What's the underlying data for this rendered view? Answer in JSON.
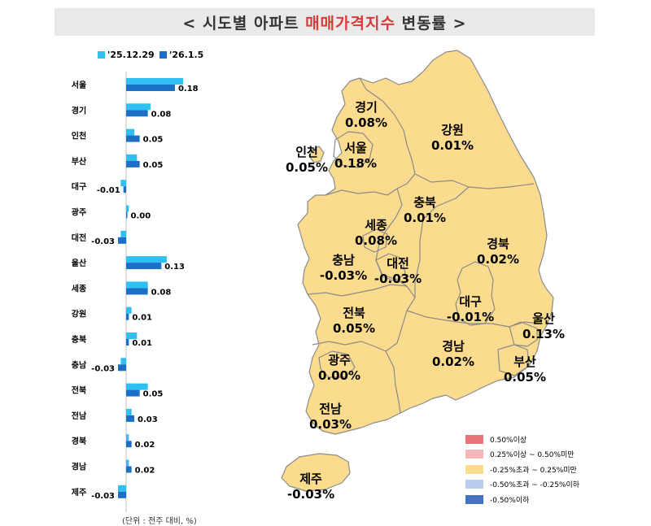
{
  "title": {
    "prefix": "<  시도별 아파트 ",
    "accent": "매매가격지수",
    "suffix": " 변동률  >"
  },
  "unit_note": "(단위 : 전주 대비, %)",
  "colors": {
    "series1": "#2ec0f0",
    "series2": "#1c6fc6",
    "map_fill": "#fbdc8e",
    "map_stroke": "#8a8a8a"
  },
  "chart_data": {
    "type": "bar",
    "orientation": "horizontal",
    "categories": [
      "서울",
      "경기",
      "인천",
      "부산",
      "대구",
      "광주",
      "대전",
      "울산",
      "세종",
      "강원",
      "충북",
      "충남",
      "전북",
      "전남",
      "경북",
      "경남",
      "제주"
    ],
    "series": [
      {
        "name": "'25.12.29",
        "values": [
          0.21,
          0.09,
          0.03,
          0.04,
          -0.02,
          0.01,
          -0.02,
          0.15,
          0.08,
          0.02,
          0.04,
          -0.02,
          0.08,
          0.02,
          0.01,
          0.01,
          -0.03
        ]
      },
      {
        "name": "'26.1.5",
        "values": [
          0.18,
          0.08,
          0.05,
          0.05,
          -0.01,
          0.0,
          -0.03,
          0.13,
          0.08,
          0.01,
          0.01,
          -0.03,
          0.05,
          0.03,
          0.02,
          0.02,
          -0.03
        ]
      }
    ],
    "data_labels": [
      "0.18",
      "0.08",
      "0.05",
      "0.05",
      "-0.01",
      "0.00",
      "-0.03",
      "0.13",
      "0.08",
      "0.01",
      "0.01",
      "-0.03",
      "0.05",
      "0.03",
      "0.02",
      "0.02",
      "-0.03"
    ],
    "xlim": [
      -0.03,
      0.21
    ],
    "legend": "top-left"
  },
  "map": {
    "regions": [
      {
        "name": "경기",
        "value": "0.08%"
      },
      {
        "name": "인천",
        "value": "0.05%"
      },
      {
        "name": "서울",
        "value": "0.18%"
      },
      {
        "name": "강원",
        "value": "0.01%"
      },
      {
        "name": "충북",
        "value": "0.01%"
      },
      {
        "name": "세종",
        "value": "0.08%"
      },
      {
        "name": "충남",
        "value": "-0.03%"
      },
      {
        "name": "대전",
        "value": "-0.03%"
      },
      {
        "name": "경북",
        "value": "0.02%"
      },
      {
        "name": "대구",
        "value": "-0.01%"
      },
      {
        "name": "울산",
        "value": "0.13%"
      },
      {
        "name": "전북",
        "value": "0.05%"
      },
      {
        "name": "광주",
        "value": "0.00%"
      },
      {
        "name": "경남",
        "value": "0.02%"
      },
      {
        "name": "부산",
        "value": "0.05%"
      },
      {
        "name": "전남",
        "value": "0.03%"
      },
      {
        "name": "제주",
        "value": "-0.03%"
      }
    ],
    "legend": [
      {
        "label": "0.50%이상",
        "color": "#e8737a"
      },
      {
        "label": "0.25%이상 ~ 0.50%미만",
        "color": "#f4b6b8"
      },
      {
        "label": "-0.25%초과 ~ 0.25%미만",
        "color": "#fbdc8e"
      },
      {
        "label": "-0.50%초과 ~ -0.25%이하",
        "color": "#b9cdf0"
      },
      {
        "label": "-0.50%이하",
        "color": "#4472c4"
      }
    ]
  }
}
